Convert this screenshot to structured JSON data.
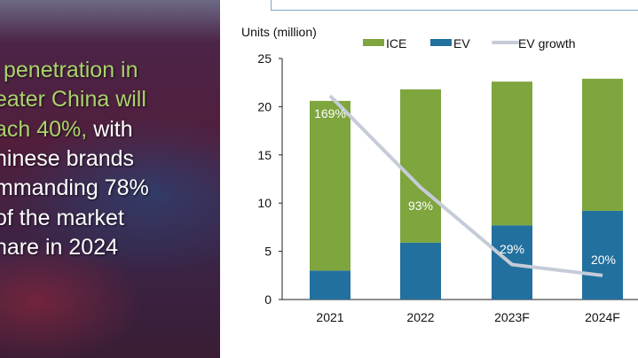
{
  "panel": {
    "lines": [
      {
        "parts": [
          {
            "text": " penetration in",
            "accent": true
          }
        ]
      },
      {
        "parts": [
          {
            "text": "eater China will",
            "accent": true
          }
        ]
      },
      {
        "parts": [
          {
            "text": "ach 40%,",
            "accent": true
          },
          {
            "text": " with",
            "accent": false
          }
        ]
      },
      {
        "parts": [
          {
            "text": "hinese brands",
            "accent": false
          }
        ]
      },
      {
        "parts": [
          {
            "text": "mmanding 78%",
            "accent": false
          }
        ]
      },
      {
        "parts": [
          {
            "text": "of the market",
            "accent": false
          }
        ]
      },
      {
        "parts": [
          {
            "text": "hare in 2024",
            "accent": false
          }
        ]
      }
    ],
    "accent_color": "#a9d36b"
  },
  "chart_data": {
    "type": "bar",
    "stacked": true,
    "ylabel": "Units (million)",
    "ylim": [
      0,
      25
    ],
    "yticks": [
      "0",
      "5",
      "10",
      "15",
      "20",
      "25"
    ],
    "categories": [
      "2021",
      "2022",
      "2023F",
      "2024F"
    ],
    "series": [
      {
        "name": "EV",
        "type": "bar",
        "color": "#22709e",
        "values": [
          3.0,
          5.9,
          7.7,
          9.2
        ]
      },
      {
        "name": "ICE",
        "type": "bar",
        "color": "#7ea53e",
        "values": [
          17.6,
          15.9,
          14.9,
          13.7
        ]
      },
      {
        "name": "EV growth",
        "type": "line",
        "color": "#c5ccd8",
        "values": [
          169,
          93,
          29,
          20
        ],
        "labels": [
          "169%",
          "93%",
          "29%",
          "20%"
        ],
        "secondary_axis_range": [
          0,
          200
        ]
      }
    ],
    "legend": [
      "ICE",
      "EV",
      "EV growth"
    ],
    "legend_position": "top",
    "grid": false
  }
}
